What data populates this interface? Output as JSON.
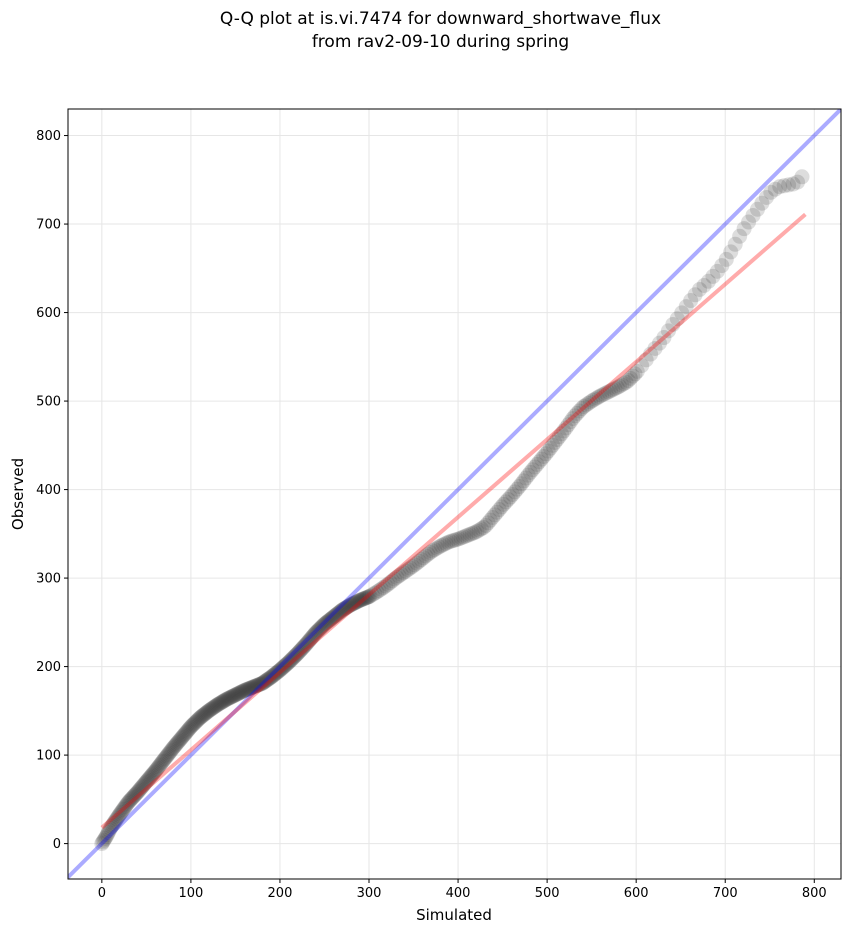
{
  "title_line1": "Q-Q plot at is.vi.7474 for downward_shortwave_flux",
  "title_line2": "from rav2-09-10 during spring",
  "chart_data": {
    "type": "scatter",
    "title": "Q-Q plot at is.vi.7474 for downward_shortwave_flux\nfrom rav2-09-10 during spring",
    "xlabel": "Simulated",
    "ylabel": "Observed",
    "xlim": [
      -38,
      830
    ],
    "ylim": [
      -40,
      830
    ],
    "xticks": [
      0,
      100,
      200,
      300,
      400,
      500,
      600,
      700,
      800
    ],
    "yticks": [
      0,
      100,
      200,
      300,
      400,
      500,
      600,
      700,
      800
    ],
    "grid": true,
    "quantile_curve": [
      [
        0,
        0
      ],
      [
        5,
        8
      ],
      [
        10,
        18
      ],
      [
        20,
        33
      ],
      [
        30,
        47
      ],
      [
        40,
        58
      ],
      [
        50,
        70
      ],
      [
        60,
        82
      ],
      [
        70,
        95
      ],
      [
        80,
        108
      ],
      [
        90,
        120
      ],
      [
        100,
        132
      ],
      [
        110,
        142
      ],
      [
        120,
        150
      ],
      [
        130,
        157
      ],
      [
        140,
        163
      ],
      [
        150,
        168
      ],
      [
        160,
        173
      ],
      [
        170,
        177
      ],
      [
        180,
        181
      ],
      [
        190,
        188
      ],
      [
        200,
        196
      ],
      [
        210,
        205
      ],
      [
        220,
        215
      ],
      [
        230,
        226
      ],
      [
        240,
        238
      ],
      [
        250,
        248
      ],
      [
        260,
        256
      ],
      [
        270,
        264
      ],
      [
        280,
        270
      ],
      [
        290,
        275
      ],
      [
        300,
        279
      ],
      [
        310,
        285
      ],
      [
        320,
        292
      ],
      [
        330,
        300
      ],
      [
        340,
        307
      ],
      [
        350,
        314
      ],
      [
        360,
        322
      ],
      [
        370,
        330
      ],
      [
        380,
        336
      ],
      [
        390,
        341
      ],
      [
        400,
        344
      ],
      [
        410,
        348
      ],
      [
        420,
        352
      ],
      [
        430,
        358
      ],
      [
        440,
        370
      ],
      [
        450,
        382
      ],
      [
        460,
        393
      ],
      [
        470,
        405
      ],
      [
        480,
        418
      ],
      [
        490,
        430
      ],
      [
        500,
        442
      ],
      [
        510,
        455
      ],
      [
        520,
        468
      ],
      [
        530,
        482
      ],
      [
        540,
        493
      ],
      [
        550,
        500
      ],
      [
        560,
        506
      ],
      [
        570,
        511
      ],
      [
        580,
        516
      ],
      [
        590,
        522
      ],
      [
        600,
        532
      ],
      [
        610,
        545
      ],
      [
        620,
        558
      ],
      [
        630,
        570
      ],
      [
        640,
        585
      ],
      [
        650,
        598
      ],
      [
        660,
        612
      ],
      [
        670,
        625
      ],
      [
        680,
        634
      ],
      [
        690,
        645
      ],
      [
        700,
        658
      ],
      [
        710,
        675
      ],
      [
        720,
        693
      ],
      [
        730,
        708
      ],
      [
        740,
        722
      ],
      [
        750,
        735
      ],
      [
        760,
        742
      ],
      [
        780,
        746
      ],
      [
        790,
        758
      ]
    ],
    "reference_line": {
      "name": "1:1",
      "color": "#0000ff",
      "from": [
        -38,
        -38
      ],
      "to": [
        830,
        830
      ]
    },
    "fit_line": {
      "color": "#ff0000",
      "from": [
        0,
        18
      ],
      "to": [
        790,
        711
      ]
    },
    "point_color": "#333333"
  }
}
